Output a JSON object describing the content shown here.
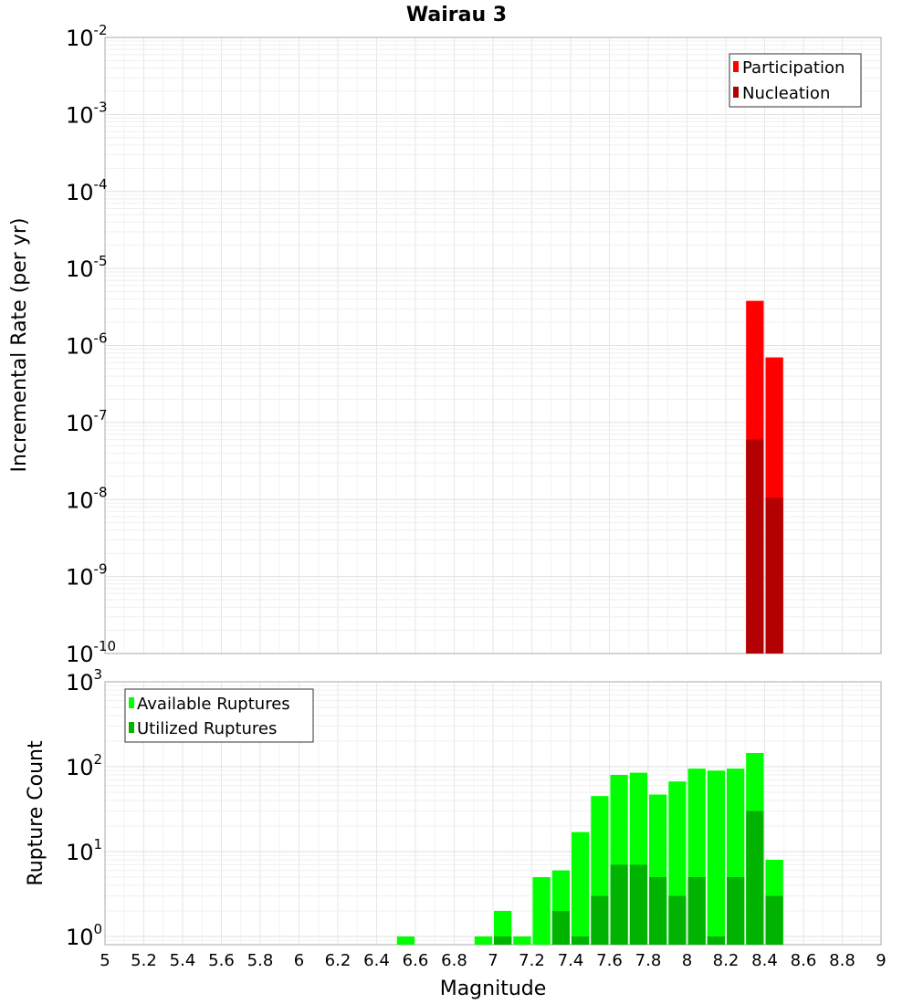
{
  "chart_data": [
    {
      "type": "bar",
      "title": "Wairau 3",
      "ylabel": "Incremental Rate (per yr)",
      "y_scale": "log",
      "ylim": [
        1e-10,
        0.01
      ],
      "xlim": [
        5,
        9
      ],
      "bin_width": 0.1,
      "grid": true,
      "legend_position": "top-right",
      "yticks": [
        {
          "base": "10",
          "exp": "-10"
        },
        {
          "base": "10",
          "exp": "-9"
        },
        {
          "base": "10",
          "exp": "-8"
        },
        {
          "base": "10",
          "exp": "-7"
        },
        {
          "base": "10",
          "exp": "-6"
        },
        {
          "base": "10",
          "exp": "-5"
        },
        {
          "base": "10",
          "exp": "-4"
        },
        {
          "base": "10",
          "exp": "-3"
        },
        {
          "base": "10",
          "exp": "-2"
        }
      ],
      "series": [
        {
          "name": "Participation",
          "color": "#ff0000",
          "x": [
            8.35,
            8.45
          ],
          "values": [
            3.8e-06,
            7e-07
          ]
        },
        {
          "name": "Nucleation",
          "color": "#b30000",
          "x": [
            8.35,
            8.45
          ],
          "values": [
            6e-08,
            1.05e-08
          ]
        }
      ]
    },
    {
      "type": "bar",
      "xlabel": "Magnitude",
      "ylabel": "Rupture Count",
      "y_scale": "log",
      "ylim": [
        0.8,
        1000
      ],
      "xlim": [
        5,
        9
      ],
      "bin_width": 0.1,
      "grid": true,
      "legend_position": "top-left",
      "xticks": [
        "5",
        "5.2",
        "5.4",
        "5.6",
        "5.8",
        "6",
        "6.2",
        "6.4",
        "6.6",
        "6.8",
        "7",
        "7.2",
        "7.4",
        "7.6",
        "7.8",
        "8",
        "8.2",
        "8.4",
        "8.6",
        "8.8",
        "9"
      ],
      "yticks": [
        {
          "base": "10",
          "exp": "0"
        },
        {
          "base": "10",
          "exp": "1"
        },
        {
          "base": "10",
          "exp": "2"
        },
        {
          "base": "10",
          "exp": "3"
        }
      ],
      "series": [
        {
          "name": "Available Ruptures",
          "color": "#00ff00",
          "x": [
            6.55,
            6.95,
            7.05,
            7.15,
            7.25,
            7.35,
            7.45,
            7.55,
            7.65,
            7.75,
            7.85,
            7.95,
            8.05,
            8.15,
            8.25,
            8.35,
            8.45
          ],
          "values": [
            1,
            1,
            2,
            1,
            5,
            6,
            17,
            45,
            80,
            85,
            47,
            67,
            95,
            90,
            95,
            145,
            8
          ]
        },
        {
          "name": "Utilized Ruptures",
          "color": "#00b300",
          "x": [
            7.05,
            7.35,
            7.45,
            7.55,
            7.65,
            7.75,
            7.85,
            7.95,
            8.05,
            8.15,
            8.25,
            8.35,
            8.45
          ],
          "values": [
            1,
            2,
            1,
            3,
            7,
            7,
            5,
            3,
            5,
            1,
            5,
            30,
            3
          ]
        }
      ]
    }
  ]
}
